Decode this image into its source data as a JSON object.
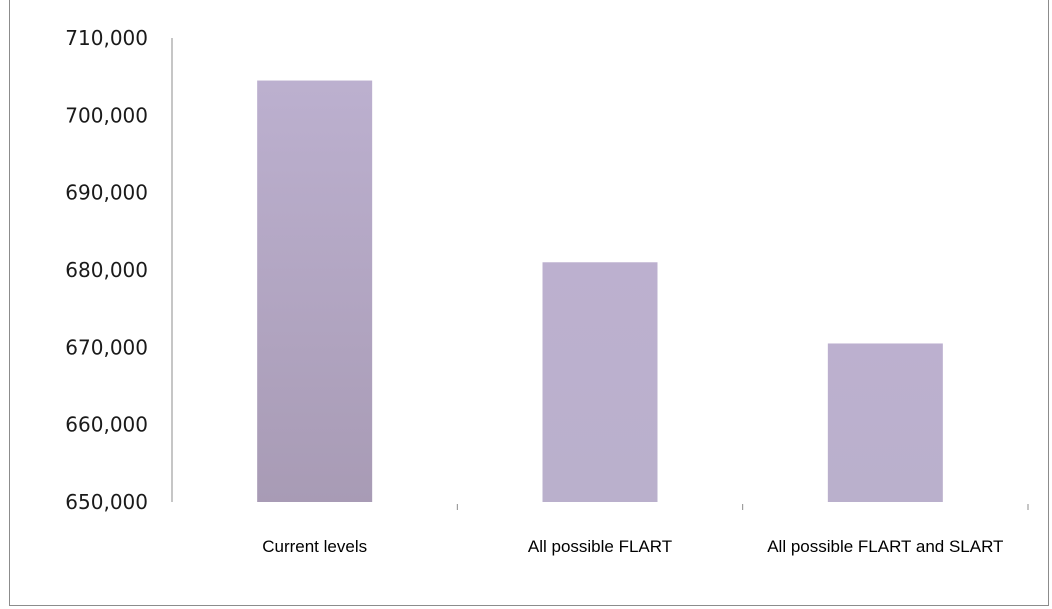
{
  "chart_data": {
    "type": "bar",
    "title": "",
    "categories": [
      "Current levels",
      "All possible FLART",
      "All possible FLART and SLART"
    ],
    "values": [
      704500,
      681000,
      670500
    ],
    "ylim": [
      650000,
      710000
    ],
    "yticks": [
      650000,
      660000,
      670000,
      680000,
      690000,
      700000,
      710000
    ],
    "ytick_labels": [
      "650,000",
      "660,000",
      "670,000",
      "680,000",
      "690,000",
      "700,000",
      "710,000"
    ],
    "xlabel": "",
    "ylabel": "",
    "grid": false,
    "legend": "none",
    "colors": {
      "bar_top": "#bcb0cf",
      "bar_bottom_first": "#a89bb5",
      "axis": "#8c8c8c",
      "frame": "#8c8c8c"
    }
  }
}
